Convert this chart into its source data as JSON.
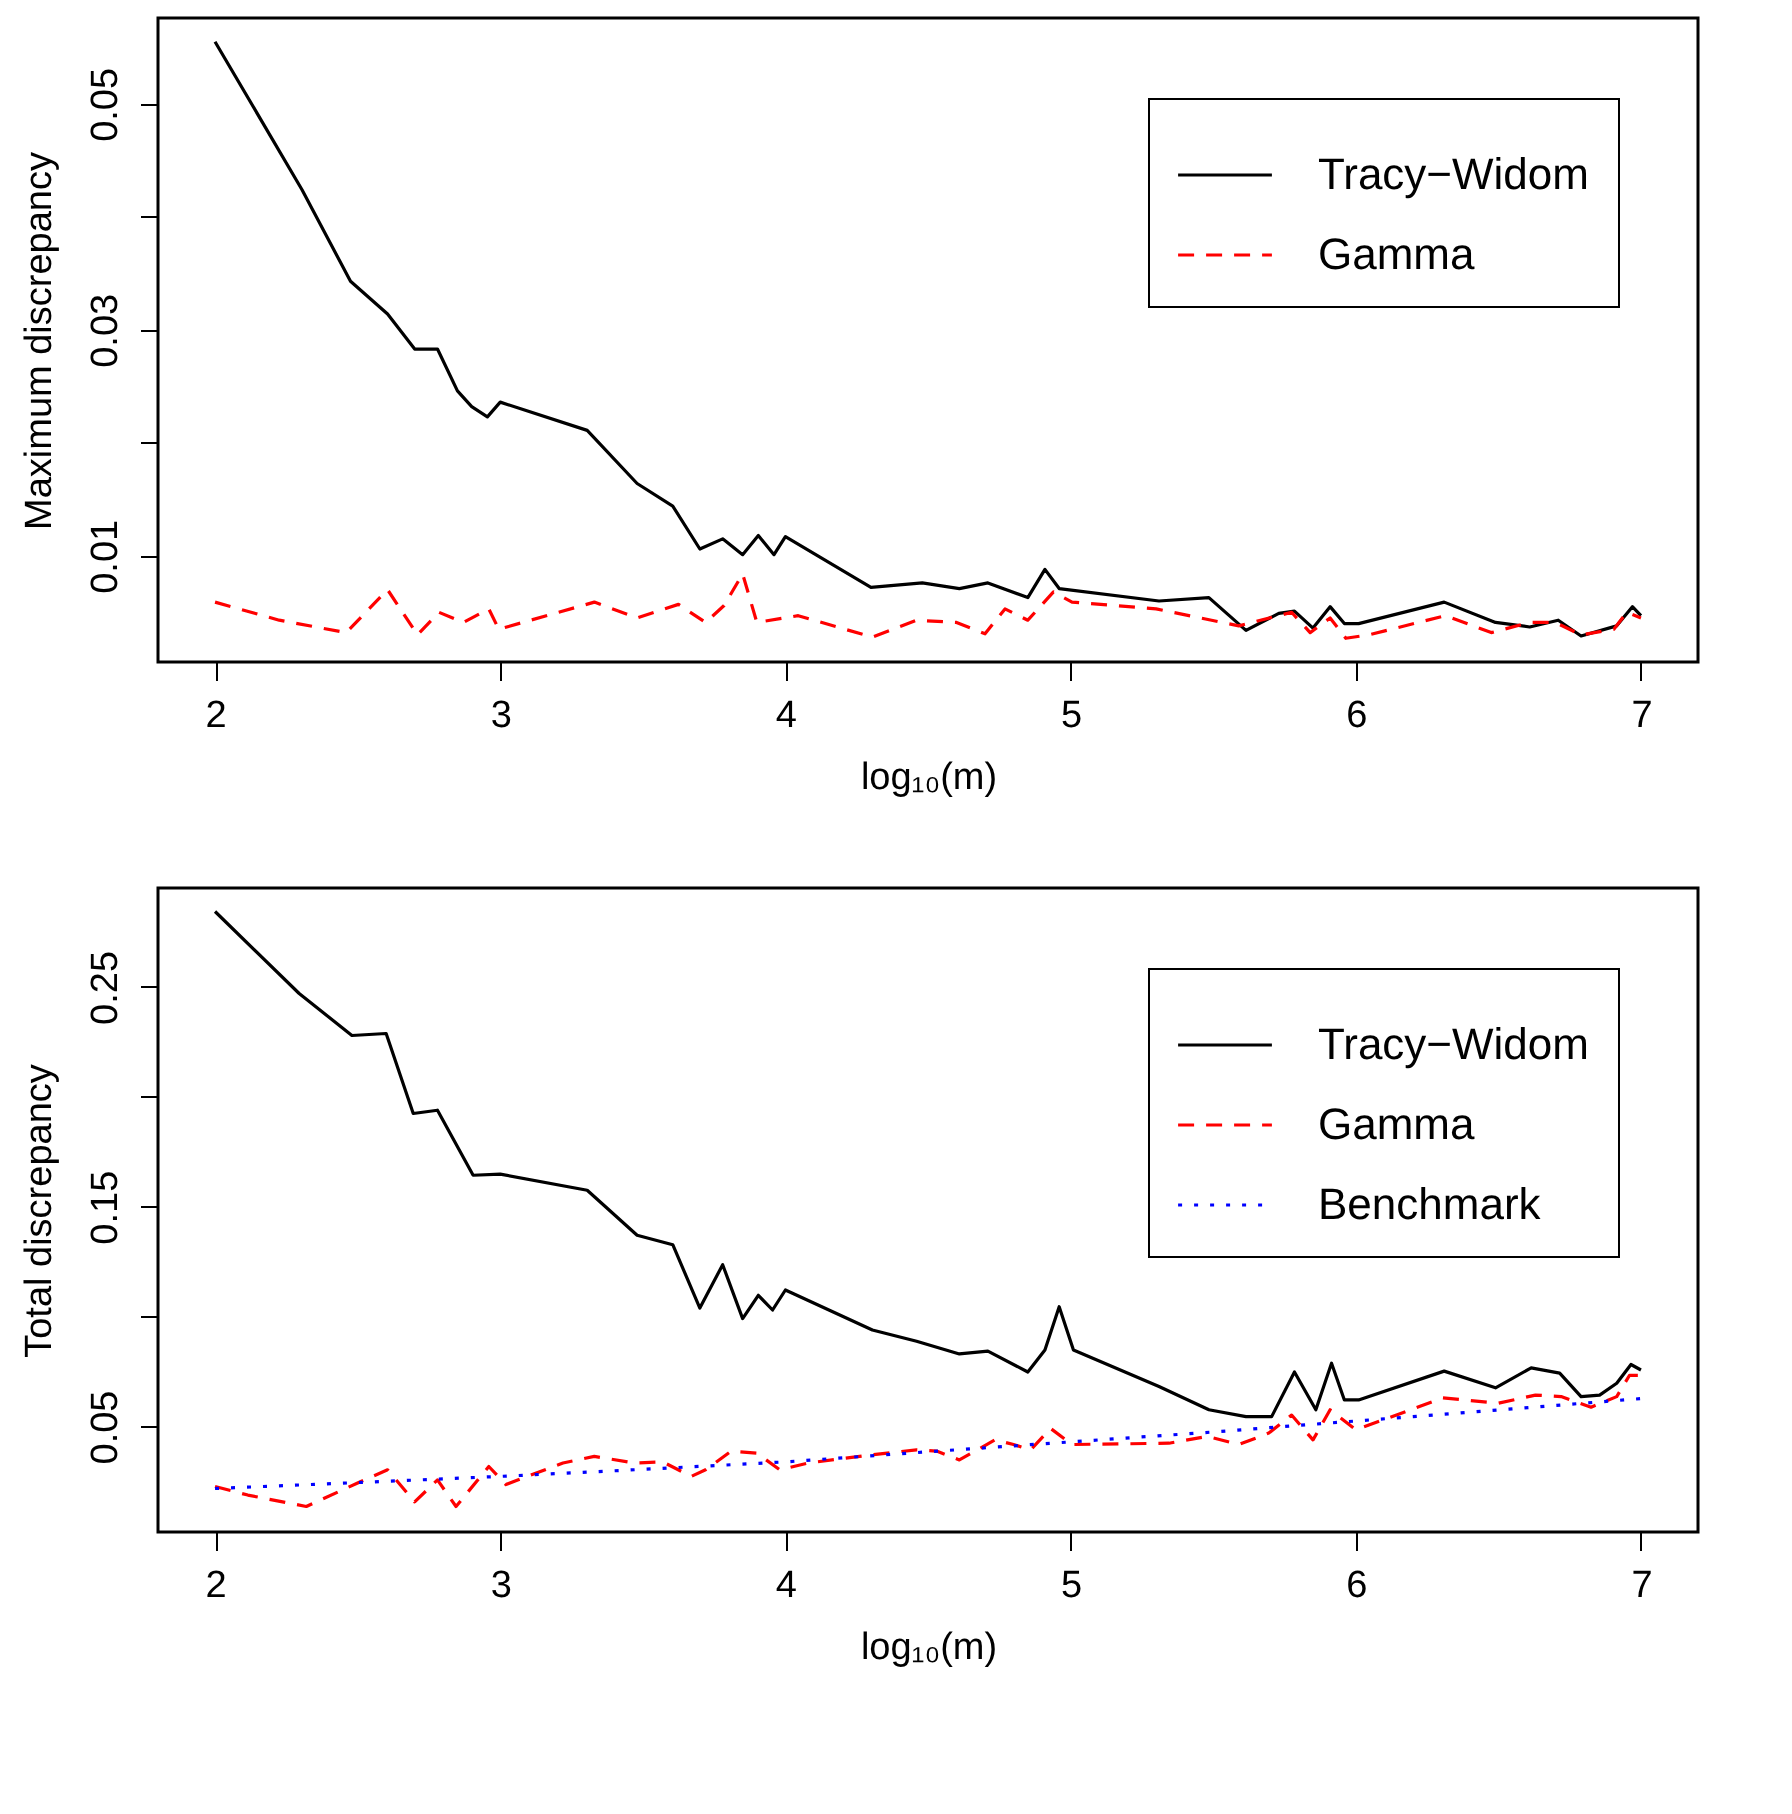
{
  "chart_data": [
    {
      "type": "line",
      "xlabel": "log₁₀(m)",
      "ylabel": "Maximum discrepancy",
      "xlim": [
        1.8,
        7.2
      ],
      "xticks": [
        2,
        3,
        4,
        5,
        6,
        7
      ],
      "ylim": [
        0.0006,
        0.0576
      ],
      "yticks": [
        0.01,
        {
          "value": 0.02,
          "label": null
        },
        0.03,
        {
          "value": 0.04,
          "label": null
        },
        0.05
      ],
      "grid": false,
      "legend": "top right",
      "series": [
        {
          "name": "Tracy−Widom",
          "color": "#000000",
          "line_style": "solid",
          "x": [
            2.0,
            2.305,
            2.475,
            2.605,
            2.7,
            2.78,
            2.85,
            2.9,
            2.955,
            3.0,
            3.305,
            3.48,
            3.605,
            3.7,
            3.78,
            3.85,
            3.905,
            3.96,
            4.0,
            4.3,
            4.48,
            4.61,
            4.71,
            4.85,
            4.91,
            4.96,
            5.31,
            5.485,
            5.615,
            5.73,
            5.785,
            5.85,
            5.91,
            5.96,
            6.01,
            6.31,
            6.49,
            6.61,
            6.71,
            6.79,
            6.915,
            6.97,
            7.0
          ],
          "values": [
            0.0555,
            0.0424,
            0.0343,
            0.0314,
            0.0283,
            0.0283,
            0.0246,
            0.0232,
            0.0223,
            0.0236,
            0.0211,
            0.0164,
            0.0144,
            0.0106,
            0.0115,
            0.0101,
            0.0118,
            0.0101,
            0.0117,
            0.0072,
            0.0076,
            0.0071,
            0.0076,
            0.0063,
            0.0088,
            0.0071,
            0.006,
            0.0063,
            0.0034,
            0.0049,
            0.0051,
            0.0036,
            0.0055,
            0.004,
            0.004,
            0.0059,
            0.0041,
            0.0037,
            0.0043,
            0.0029,
            0.0038,
            0.0055,
            0.0047
          ]
        },
        {
          "name": "Gamma",
          "color": "#ff0000",
          "line_style": "dashed",
          "x": [
            2.0,
            2.225,
            2.46,
            2.605,
            2.71,
            2.785,
            2.87,
            2.96,
            2.995,
            3.33,
            3.48,
            3.625,
            3.72,
            3.785,
            3.85,
            3.9,
            4.045,
            4.305,
            4.46,
            4.6,
            4.7,
            4.77,
            4.85,
            4.94,
            5.005,
            5.3,
            5.59,
            5.775,
            5.84,
            5.91,
            5.965,
            6.045,
            6.315,
            6.475,
            6.61,
            6.7,
            6.79,
            6.905,
            6.95,
            7.0
          ],
          "values": [
            0.0059,
            0.0043,
            0.0032,
            0.007,
            0.003,
            0.005,
            0.0041,
            0.0053,
            0.0035,
            0.0059,
            0.0045,
            0.0057,
            0.0041,
            0.0056,
            0.0084,
            0.0041,
            0.0047,
            0.0028,
            0.0043,
            0.0041,
            0.0031,
            0.0053,
            0.0043,
            0.0068,
            0.0059,
            0.0053,
            0.0038,
            0.005,
            0.0032,
            0.0045,
            0.0027,
            0.003,
            0.0047,
            0.0032,
            0.0041,
            0.0041,
            0.003,
            0.0035,
            0.005,
            0.0045
          ]
        }
      ]
    },
    {
      "type": "line",
      "xlabel": "log₁₀(m)",
      "ylabel": "Total discrepancy",
      "xlim": [
        1.8,
        7.2
      ],
      "xticks": [
        2,
        3,
        4,
        5,
        6,
        7
      ],
      "ylim": [
        0.002,
        0.295
      ],
      "yticks": [
        0.05,
        {
          "value": 0.1,
          "label": null
        },
        0.15,
        {
          "value": 0.2,
          "label": null
        },
        0.25
      ],
      "grid": false,
      "legend": "top right",
      "series": [
        {
          "name": "Tracy−Widom",
          "color": "#000000",
          "line_style": "solid",
          "x": [
            2.0,
            2.295,
            2.48,
            2.6,
            2.695,
            2.78,
            2.905,
            3.0,
            3.305,
            3.48,
            3.605,
            3.7,
            3.78,
            3.85,
            3.905,
            3.955,
            4.0,
            4.305,
            4.46,
            4.61,
            4.71,
            4.85,
            4.91,
            4.96,
            5.01,
            5.31,
            5.485,
            5.615,
            5.705,
            5.785,
            5.86,
            5.915,
            5.96,
            6.01,
            6.31,
            6.49,
            6.615,
            6.715,
            6.79,
            6.855,
            6.915,
            6.965,
            7.0
          ],
          "values": [
            0.2843,
            0.247,
            0.2279,
            0.2288,
            0.1924,
            0.1939,
            0.1643,
            0.1648,
            0.1575,
            0.137,
            0.1327,
            0.1039,
            0.1236,
            0.0991,
            0.1097,
            0.103,
            0.1121,
            0.0939,
            0.0888,
            0.083,
            0.0843,
            0.0748,
            0.0848,
            0.1045,
            0.0848,
            0.0682,
            0.0576,
            0.0545,
            0.0545,
            0.0748,
            0.0576,
            0.0788,
            0.0621,
            0.0621,
            0.0752,
            0.0676,
            0.0767,
            0.0743,
            0.0636,
            0.0643,
            0.0697,
            0.0782,
            0.0757
          ]
        },
        {
          "name": "Gamma",
          "color": "#ff0000",
          "line_style": "dashed",
          "x": [
            2.0,
            2.115,
            2.32,
            2.5,
            2.605,
            2.7,
            2.78,
            2.845,
            2.96,
            3.02,
            3.22,
            3.33,
            3.47,
            3.57,
            3.67,
            3.72,
            3.81,
            3.9,
            3.98,
            4.08,
            4.295,
            4.46,
            4.53,
            4.61,
            4.735,
            4.8,
            4.86,
            4.93,
            5.005,
            5.345,
            5.48,
            5.59,
            5.695,
            5.775,
            5.85,
            5.91,
            6.0,
            6.205,
            6.305,
            6.5,
            6.63,
            6.72,
            6.825,
            6.915,
            6.96,
            7.0
          ],
          "values": [
            0.0227,
            0.0188,
            0.0136,
            0.0243,
            0.0303,
            0.0157,
            0.0257,
            0.0136,
            0.0318,
            0.0236,
            0.0334,
            0.0364,
            0.0334,
            0.0339,
            0.0273,
            0.0303,
            0.0388,
            0.0379,
            0.0303,
            0.0334,
            0.037,
            0.0394,
            0.0388,
            0.0348,
            0.0439,
            0.0418,
            0.0394,
            0.0491,
            0.0418,
            0.0424,
            0.0455,
            0.0418,
            0.047,
            0.0552,
            0.0439,
            0.0576,
            0.0485,
            0.0582,
            0.063,
            0.0606,
            0.0643,
            0.0636,
            0.0588,
            0.0636,
            0.0733,
            0.0733
          ]
        },
        {
          "name": "Benchmark",
          "color": "#0000ff",
          "line_style": "dotted",
          "x": [
            2.0,
            2.5,
            3.0,
            3.5,
            4.0,
            4.5,
            5.0,
            5.5,
            6.0,
            6.5,
            7.0
          ],
          "values": [
            0.0218,
            0.0245,
            0.0273,
            0.0305,
            0.0339,
            0.0385,
            0.043,
            0.0475,
            0.0525,
            0.0575,
            0.0627
          ]
        }
      ]
    }
  ]
}
